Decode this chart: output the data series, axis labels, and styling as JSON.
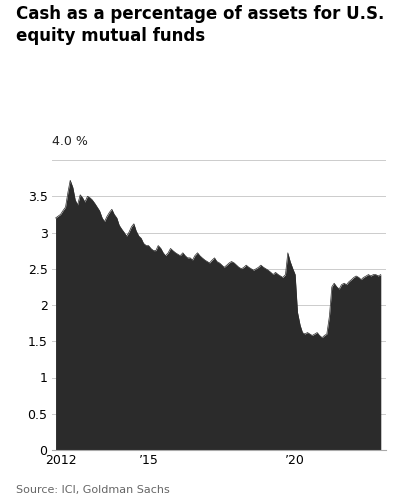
{
  "title": "Cash as a percentage of assets for U.S.\nequity mutual funds",
  "ylabel": "4.0 %",
  "source": "Source: ICI, Goldman Sachs",
  "xticks": [
    2012,
    2015,
    2020
  ],
  "xtick_labels": [
    "2012",
    "’15",
    "’20"
  ],
  "yticks": [
    0,
    0.5,
    1.0,
    1.5,
    2.0,
    2.5,
    3.0,
    3.5
  ],
  "ylim": [
    0,
    4.0
  ],
  "xlim_start": 2011.7,
  "xlim_end": 2023.1,
  "fill_color": "#2b2b2b",
  "background_color": "#ffffff",
  "grid_color": "#cccccc",
  "series": {
    "dates": [
      2011.83,
      2012.0,
      2012.08,
      2012.17,
      2012.25,
      2012.33,
      2012.42,
      2012.5,
      2012.58,
      2012.67,
      2012.75,
      2012.83,
      2012.92,
      2013.0,
      2013.08,
      2013.17,
      2013.25,
      2013.33,
      2013.42,
      2013.5,
      2013.58,
      2013.67,
      2013.75,
      2013.83,
      2013.92,
      2014.0,
      2014.08,
      2014.17,
      2014.25,
      2014.33,
      2014.42,
      2014.5,
      2014.58,
      2014.67,
      2014.75,
      2014.83,
      2014.92,
      2015.0,
      2015.08,
      2015.17,
      2015.25,
      2015.33,
      2015.42,
      2015.5,
      2015.58,
      2015.67,
      2015.75,
      2015.83,
      2015.92,
      2016.0,
      2016.08,
      2016.17,
      2016.25,
      2016.33,
      2016.42,
      2016.5,
      2016.58,
      2016.67,
      2016.75,
      2016.83,
      2016.92,
      2017.0,
      2017.08,
      2017.17,
      2017.25,
      2017.33,
      2017.42,
      2017.5,
      2017.58,
      2017.67,
      2017.75,
      2017.83,
      2017.92,
      2018.0,
      2018.08,
      2018.17,
      2018.25,
      2018.33,
      2018.42,
      2018.5,
      2018.58,
      2018.67,
      2018.75,
      2018.83,
      2018.92,
      2019.0,
      2019.08,
      2019.17,
      2019.25,
      2019.33,
      2019.42,
      2019.5,
      2019.58,
      2019.67,
      2019.75,
      2019.83,
      2019.92,
      2020.0,
      2020.08,
      2020.17,
      2020.25,
      2020.33,
      2020.42,
      2020.5,
      2020.58,
      2020.67,
      2020.75,
      2020.83,
      2020.92,
      2021.0,
      2021.08,
      2021.17,
      2021.25,
      2021.33,
      2021.42,
      2021.5,
      2021.58,
      2021.67,
      2021.75,
      2021.83,
      2021.92,
      2022.0,
      2022.08,
      2022.17,
      2022.25,
      2022.33,
      2022.42,
      2022.5,
      2022.58,
      2022.67,
      2022.75,
      2022.83,
      2022.92
    ],
    "values": [
      3.2,
      3.25,
      3.3,
      3.35,
      3.55,
      3.72,
      3.62,
      3.45,
      3.38,
      3.52,
      3.48,
      3.42,
      3.5,
      3.48,
      3.45,
      3.4,
      3.35,
      3.3,
      3.2,
      3.15,
      3.22,
      3.28,
      3.32,
      3.25,
      3.2,
      3.1,
      3.05,
      3.0,
      2.95,
      3.0,
      3.08,
      3.12,
      3.02,
      2.95,
      2.92,
      2.85,
      2.82,
      2.82,
      2.78,
      2.75,
      2.75,
      2.82,
      2.78,
      2.72,
      2.68,
      2.72,
      2.78,
      2.75,
      2.72,
      2.7,
      2.68,
      2.72,
      2.68,
      2.65,
      2.65,
      2.62,
      2.68,
      2.72,
      2.68,
      2.65,
      2.62,
      2.6,
      2.58,
      2.62,
      2.65,
      2.6,
      2.58,
      2.55,
      2.52,
      2.55,
      2.58,
      2.6,
      2.58,
      2.55,
      2.52,
      2.5,
      2.52,
      2.55,
      2.52,
      2.5,
      2.48,
      2.5,
      2.52,
      2.55,
      2.52,
      2.5,
      2.48,
      2.45,
      2.42,
      2.45,
      2.42,
      2.4,
      2.38,
      2.42,
      2.72,
      2.6,
      2.5,
      2.42,
      1.9,
      1.72,
      1.62,
      1.6,
      1.62,
      1.6,
      1.58,
      1.6,
      1.62,
      1.58,
      1.55,
      1.58,
      1.6,
      1.85,
      2.25,
      2.3,
      2.25,
      2.22,
      2.28,
      2.3,
      2.28,
      2.32,
      2.35,
      2.38,
      2.4,
      2.38,
      2.35,
      2.38,
      2.4,
      2.42,
      2.4,
      2.42,
      2.42,
      2.4,
      2.42
    ]
  }
}
